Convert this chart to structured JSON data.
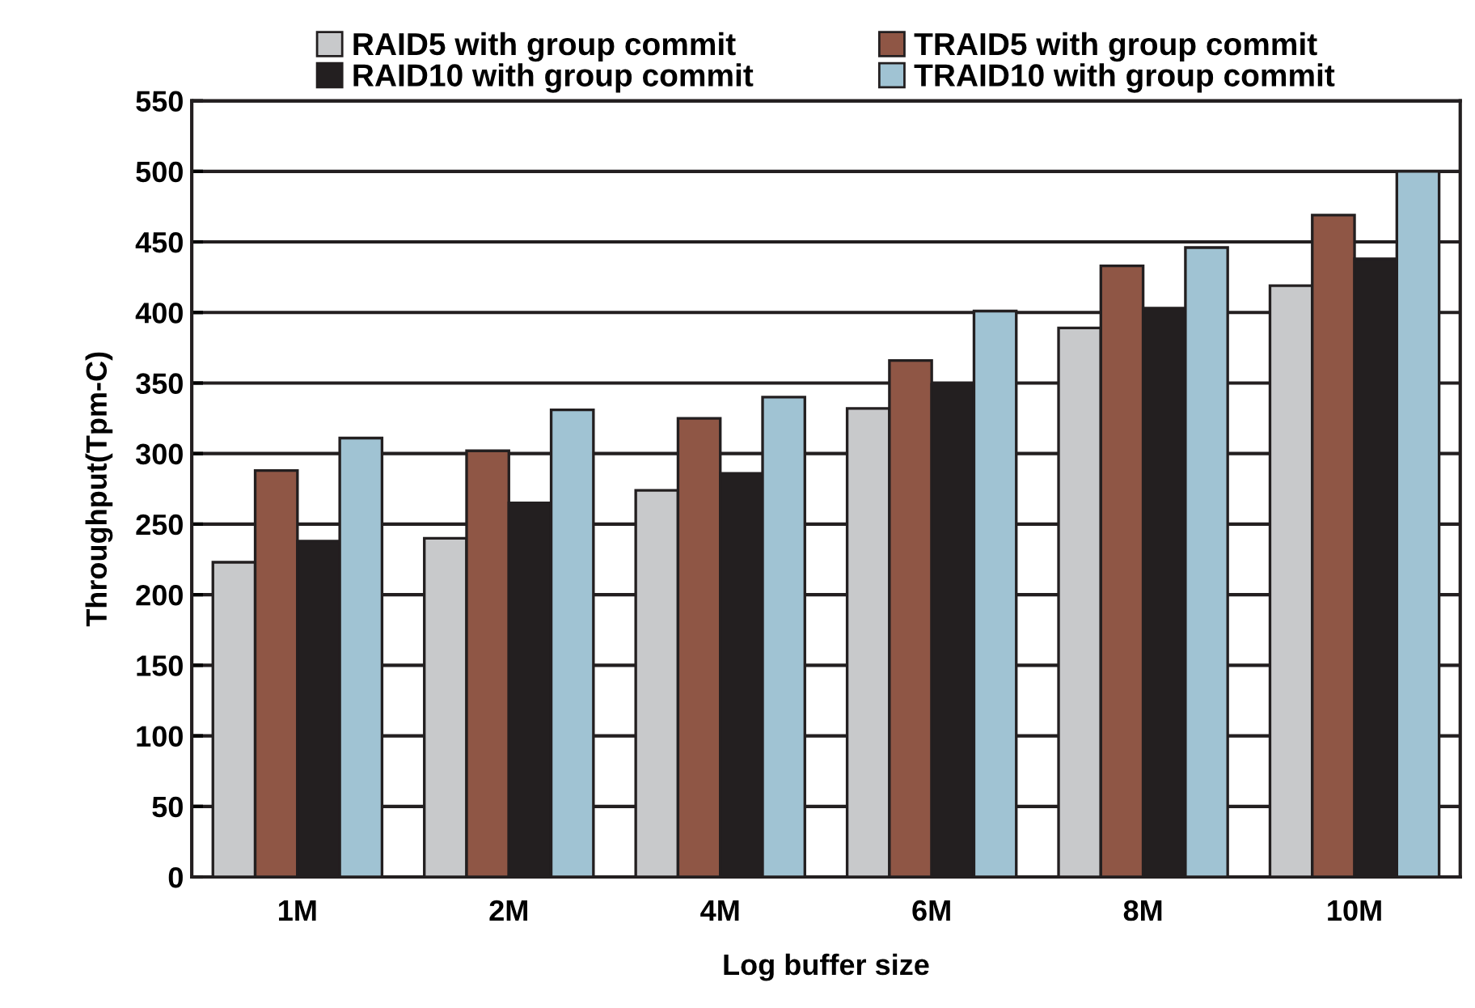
{
  "chart_data": {
    "type": "bar",
    "xlabel": "Log buffer size",
    "ylabel": "Throughput(Tpm-C)",
    "categories": [
      "1M",
      "2M",
      "4M",
      "6M",
      "8M",
      "10M"
    ],
    "series": [
      {
        "name": "RAID5 with group commit",
        "color": "#c8c9cb",
        "values": [
          223,
          240,
          274,
          332,
          389,
          419
        ]
      },
      {
        "name": "TRAID5 with group commit",
        "color": "#8f5645",
        "values": [
          288,
          302,
          325,
          366,
          433,
          469
        ]
      },
      {
        "name": "RAID10 with group commit",
        "color": "#231f20",
        "values": [
          238,
          265,
          286,
          349,
          403,
          438
        ]
      },
      {
        "name": "TRAID10 with group commit",
        "color": "#a0c3d3",
        "values": [
          311,
          331,
          340,
          401,
          446,
          500
        ]
      }
    ],
    "ylim": [
      0,
      550
    ],
    "yticks": [
      0,
      50,
      100,
      150,
      200,
      250,
      300,
      350,
      400,
      450,
      500,
      550
    ],
    "grid": "y",
    "legend": "top"
  }
}
